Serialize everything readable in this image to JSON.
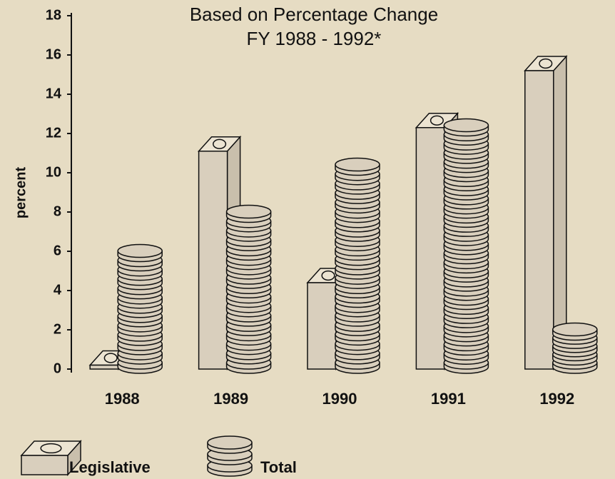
{
  "chart_data": {
    "type": "bar3d",
    "title": "Based on Percentage Change",
    "subtitle": "FY 1988 - 1992*",
    "y_label": "percent",
    "categories": [
      "1988",
      "1989",
      "1990",
      "1991",
      "1992"
    ],
    "series": [
      {
        "name": "Legislative",
        "color": "#d9cfbd",
        "values": [
          0.2,
          11.1,
          4.4,
          12.3,
          15.2
        ]
      },
      {
        "name": "Total",
        "color": "#d9cfbd",
        "values": [
          6.2,
          8.2,
          10.6,
          12.6,
          2.2
        ]
      }
    ],
    "ylim": [
      0,
      18
    ],
    "yticks": [
      0,
      2,
      4,
      6,
      8,
      10,
      12,
      14,
      16,
      18
    ],
    "grid": false
  }
}
